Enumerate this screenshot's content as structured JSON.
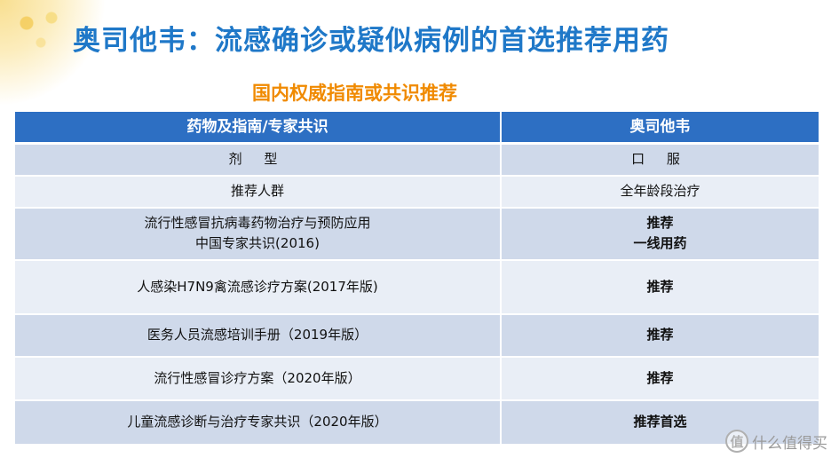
{
  "title": "奥司他韦：流感确诊或疑似病例的首选推荐用药",
  "subtitle": "国内权威指南或共识推荐",
  "table": {
    "headers": [
      "药物及指南/专家共识",
      "奥司他韦"
    ],
    "rows": [
      {
        "left": [
          "剂 型"
        ],
        "right": [
          "口 服"
        ],
        "right_red": false
      },
      {
        "left": [
          "推荐人群"
        ],
        "right": [
          "全年龄段治疗"
        ],
        "right_red": false
      },
      {
        "left": [
          "流行性感冒抗病毒药物治疗与预防应用",
          "中国专家共识(2016)"
        ],
        "right": [
          "推荐",
          "一线用药"
        ],
        "right_red": true
      },
      {
        "left": [
          "人感染H7N9禽流感诊疗方案(2017年版)"
        ],
        "right": [
          "推荐"
        ],
        "right_red": true
      },
      {
        "left": [
          "医务人员流感培训手册（2019年版）"
        ],
        "right": [
          "推荐"
        ],
        "right_red": true
      },
      {
        "left": [
          "流行性感冒诊疗方案（2020年版）"
        ],
        "right": [
          "推荐"
        ],
        "right_red": true
      },
      {
        "left": [
          "儿童流感诊断与治疗专家共识（2020年版）"
        ],
        "right": [
          "推荐首选"
        ],
        "right_red": true
      }
    ]
  },
  "watermark": {
    "icon_text": "值",
    "text": "什么值得买"
  }
}
